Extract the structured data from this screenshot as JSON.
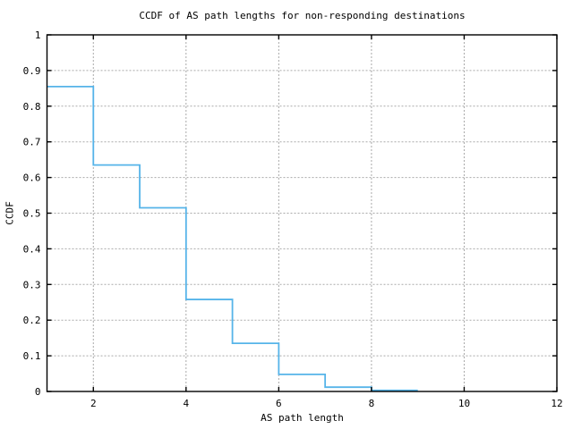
{
  "chart_data": {
    "type": "line",
    "subtype": "step-post",
    "title": "CCDF of AS path lengths for non-responding destinations",
    "xlabel": "AS path length",
    "ylabel": "CCDF",
    "xlim": [
      1,
      12
    ],
    "ylim": [
      0,
      1
    ],
    "grid": true,
    "legend_position": "none",
    "xticks": [
      {
        "value": 2,
        "label": "2"
      },
      {
        "value": 4,
        "label": "4"
      },
      {
        "value": 6,
        "label": "6"
      },
      {
        "value": 8,
        "label": "8"
      },
      {
        "value": 10,
        "label": "10"
      },
      {
        "value": 12,
        "label": "12"
      }
    ],
    "yticks": [
      {
        "value": 0,
        "label": "0"
      },
      {
        "value": 0.1,
        "label": "0.1"
      },
      {
        "value": 0.2,
        "label": "0.2"
      },
      {
        "value": 0.3,
        "label": "0.3"
      },
      {
        "value": 0.4,
        "label": "0.4"
      },
      {
        "value": 0.5,
        "label": "0.5"
      },
      {
        "value": 0.6,
        "label": "0.6"
      },
      {
        "value": 0.7,
        "label": "0.7"
      },
      {
        "value": 0.8,
        "label": "0.8"
      },
      {
        "value": 0.9,
        "label": "0.9"
      },
      {
        "value": 1,
        "label": "1"
      }
    ],
    "series": [
      {
        "name": "ccdf-steps",
        "color": "#56b4e9",
        "points": [
          {
            "x": 1,
            "y": 0.855
          },
          {
            "x": 2,
            "y": 0.635
          },
          {
            "x": 3,
            "y": 0.515
          },
          {
            "x": 4,
            "y": 0.258
          },
          {
            "x": 5,
            "y": 0.135
          },
          {
            "x": 6,
            "y": 0.048
          },
          {
            "x": 7,
            "y": 0.012
          },
          {
            "x": 8,
            "y": 0.003
          },
          {
            "x": 9,
            "y": 0.003
          }
        ]
      }
    ],
    "colors": {
      "line": "#56b4e9",
      "grid": "#a9a9a9",
      "axis": "#000000",
      "background": "#ffffff"
    }
  }
}
